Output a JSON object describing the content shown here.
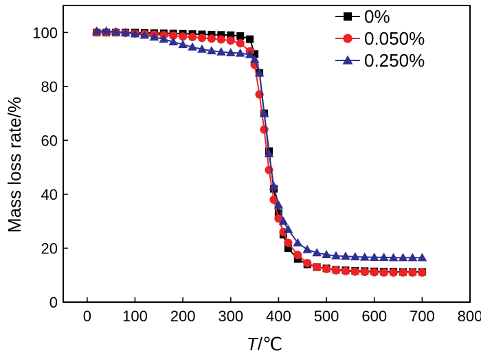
{
  "chart_data": {
    "type": "line",
    "title": "",
    "xlabel_italic": "T",
    "xlabel_rest": "/℃",
    "ylabel": "Mass loss rate/%",
    "xlim": [
      -50,
      800
    ],
    "ylim": [
      0,
      110
    ],
    "xticks": [
      0,
      100,
      200,
      300,
      400,
      500,
      600,
      700,
      800
    ],
    "yticks": [
      0,
      20,
      40,
      60,
      80,
      100
    ],
    "xtick_labels": [
      "0",
      "100",
      "200",
      "300",
      "400",
      "500",
      "600",
      "700",
      "800"
    ],
    "ytick_labels": [
      "0",
      "20",
      "40",
      "60",
      "80",
      "100"
    ],
    "legend_position": "top-right",
    "series": [
      {
        "name": "0%",
        "color": "#000000",
        "marker": "square",
        "x": [
          20,
          40,
          60,
          80,
          100,
          120,
          140,
          160,
          180,
          200,
          220,
          240,
          260,
          280,
          300,
          320,
          340,
          350,
          360,
          370,
          380,
          390,
          400,
          410,
          420,
          440,
          460,
          480,
          500,
          520,
          540,
          560,
          580,
          600,
          620,
          640,
          660,
          680,
          700
        ],
        "y": [
          100,
          100,
          100,
          100,
          100,
          99.9,
          99.8,
          99.7,
          99.6,
          99.5,
          99.4,
          99.3,
          99.2,
          99.1,
          99.0,
          98.7,
          97.5,
          92,
          85,
          70,
          56,
          42,
          33,
          25,
          20,
          16,
          14,
          13,
          12.5,
          12,
          11.8,
          11.6,
          11.5,
          11.4,
          11.3,
          11.3,
          11.2,
          11.2,
          11.2
        ]
      },
      {
        "name": "0.050%",
        "color": "#ed2224",
        "marker": "circle",
        "x": [
          20,
          40,
          60,
          80,
          100,
          120,
          140,
          160,
          180,
          200,
          220,
          240,
          260,
          280,
          300,
          320,
          340,
          350,
          360,
          370,
          380,
          390,
          400,
          410,
          420,
          440,
          460,
          480,
          500,
          520,
          540,
          560,
          580,
          600,
          620,
          640,
          660,
          680,
          700
        ],
        "y": [
          100,
          100,
          100,
          99.8,
          99.6,
          99.4,
          99.2,
          99,
          98.8,
          98.5,
          98.3,
          98,
          97.7,
          97.4,
          97,
          96,
          93,
          88,
          77,
          64,
          49,
          38,
          31,
          26,
          22,
          17.5,
          14.5,
          13,
          12.3,
          11.8,
          11.5,
          11.3,
          11.2,
          11.1,
          11,
          11,
          11,
          11,
          11
        ]
      },
      {
        "name": "0.250%",
        "color": "#2e3192",
        "marker": "triangle",
        "x": [
          20,
          40,
          60,
          80,
          100,
          120,
          140,
          160,
          180,
          200,
          220,
          240,
          260,
          280,
          300,
          320,
          340,
          350,
          360,
          370,
          380,
          390,
          400,
          410,
          420,
          440,
          460,
          480,
          500,
          520,
          540,
          560,
          580,
          600,
          620,
          640,
          660,
          680,
          700
        ],
        "y": [
          100.5,
          100.5,
          100.3,
          100,
          99.5,
          99,
          98.3,
          97.5,
          96.5,
          95.5,
          94.6,
          93.8,
          93.2,
          92.8,
          92.5,
          92.3,
          91.8,
          90,
          85,
          70,
          55,
          43,
          36,
          30,
          27,
          22,
          19.5,
          18.3,
          17.6,
          17.2,
          17,
          16.8,
          16.7,
          16.6,
          16.6,
          16.5,
          16.5,
          16.5,
          16.5
        ]
      }
    ]
  }
}
